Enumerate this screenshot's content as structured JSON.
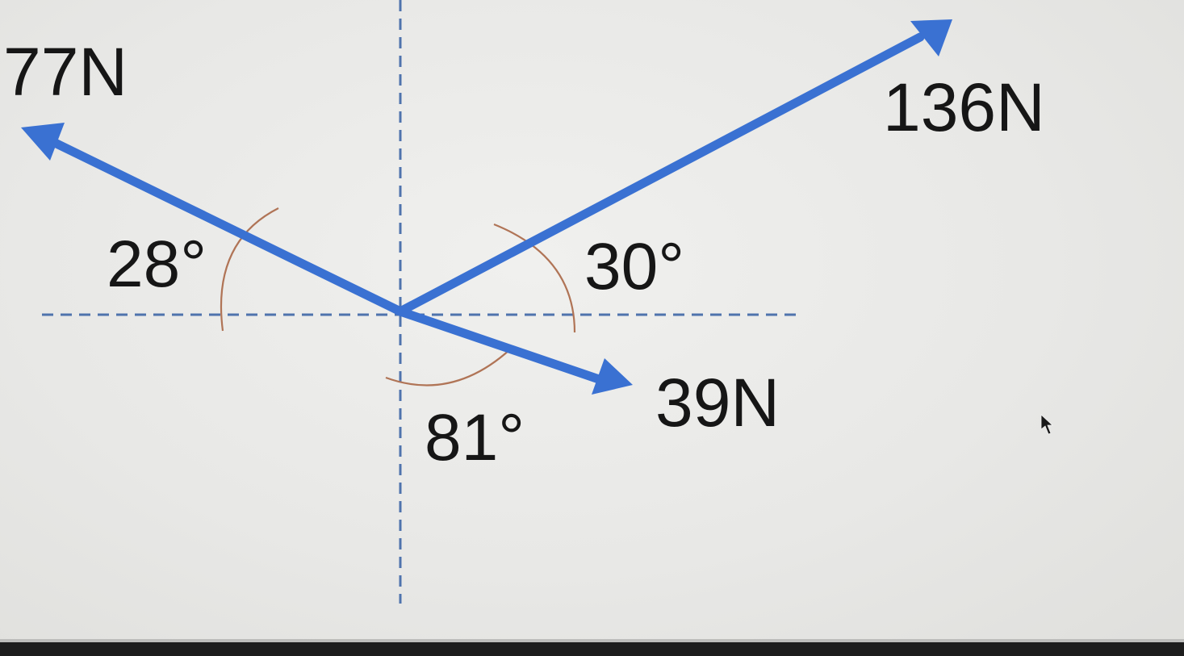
{
  "forces": [
    {
      "id": "force-77n",
      "label": "77N",
      "magnitude_n": 77,
      "angle_deg": 28,
      "reference": "negative-x-axis",
      "direction": "up-left"
    },
    {
      "id": "force-136n",
      "label": "136N",
      "magnitude_n": 136,
      "angle_deg": 30,
      "reference": "positive-x-axis",
      "direction": "up-right"
    },
    {
      "id": "force-39n",
      "label": "39N",
      "magnitude_n": 39,
      "angle_deg": 81,
      "reference": "negative-y-axis",
      "direction": "down-right"
    }
  ],
  "angles": [
    {
      "id": "angle-28",
      "label": "28°"
    },
    {
      "id": "angle-30",
      "label": "30°"
    },
    {
      "id": "angle-81",
      "label": "81°"
    }
  ],
  "colors": {
    "arrow": "#3a71d2",
    "axis": "#4f73ad",
    "arc": "#b07456",
    "text": "#161616"
  }
}
